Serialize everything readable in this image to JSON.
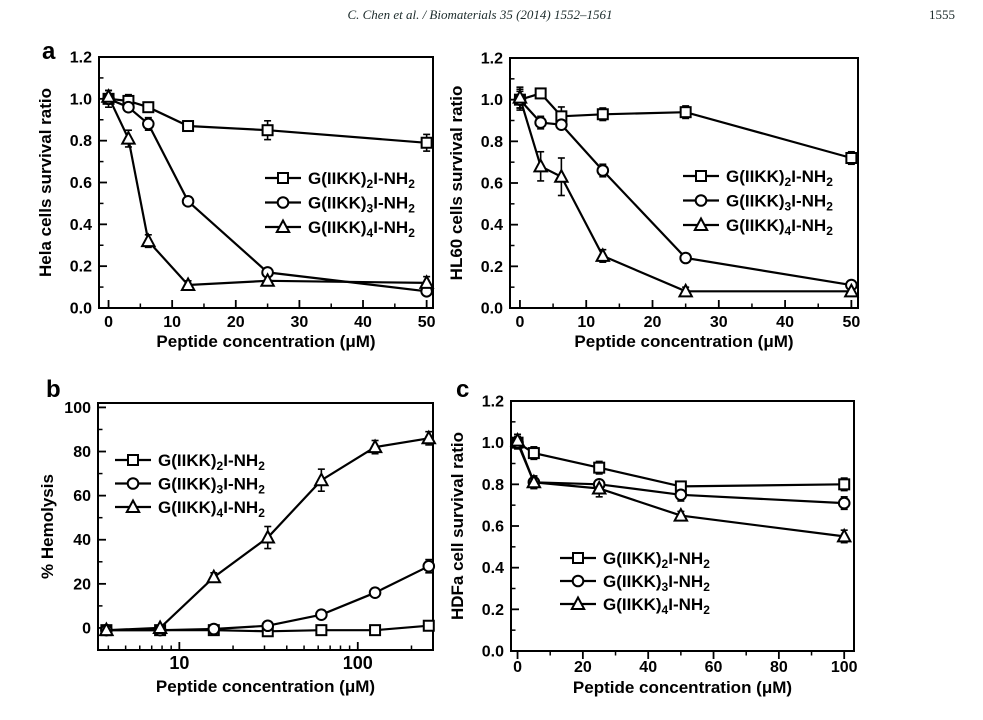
{
  "header": {
    "citation": "C. Chen et al. / Biomaterials 35 (2014) 1552–1561",
    "page_number": "1555"
  },
  "panels": [
    {
      "letter": "a"
    },
    {
      "letter": ""
    },
    {
      "letter": "b"
    },
    {
      "letter": "c"
    }
  ],
  "colors": {
    "ink": "#000000",
    "background": "#ffffff"
  },
  "chart_data": [
    {
      "id": "hela",
      "type": "line",
      "title": "",
      "xlabel": "Peptide concentration (μM)",
      "ylabel": "Hela cells survival ratio",
      "xscale": "linear",
      "xlim": [
        -1.5,
        51
      ],
      "ylim": [
        0,
        1.2
      ],
      "grid": false,
      "xticks": {
        "major": [
          0,
          10,
          20,
          30,
          40,
          50
        ],
        "minor": [
          5,
          15,
          25,
          35,
          45
        ],
        "labels": [
          "0",
          "10",
          "20",
          "30",
          "40",
          "50"
        ]
      },
      "yticks": {
        "major": [
          0,
          0.2,
          0.4,
          0.6,
          0.8,
          1.0,
          1.2
        ],
        "minor": [
          0.1,
          0.3,
          0.5,
          0.7,
          0.9,
          1.1
        ],
        "labels": [
          "0.0",
          "0.2",
          "0.4",
          "0.6",
          "0.8",
          "1.0",
          "1.2"
        ]
      },
      "x": [
        0,
        3.125,
        6.25,
        12.5,
        25,
        50
      ],
      "series": [
        {
          "name": "G(IIKK)₂I-NH₂",
          "marker": "square",
          "y": [
            1.0,
            0.99,
            0.96,
            0.87,
            0.85,
            0.79
          ],
          "err": [
            0.02,
            0.03,
            0.02,
            0.02,
            0.045,
            0.04
          ]
        },
        {
          "name": "G(IIKK)₃I-NH₂",
          "marker": "circle",
          "y": [
            1.0,
            0.96,
            0.88,
            0.51,
            0.17,
            0.08
          ],
          "err": [
            0.04,
            0.02,
            0.03,
            0.02,
            0.02,
            0.02
          ]
        },
        {
          "name": "G(IIKK)₄I-NH₂",
          "marker": "triangle",
          "y": [
            1.01,
            0.81,
            0.32,
            0.11,
            0.13,
            0.12
          ],
          "err": [
            0.03,
            0.04,
            0.03,
            0.02,
            0.02,
            0.03
          ]
        }
      ],
      "legend": {
        "position": "middle-right",
        "pos": [
          230,
          142
        ]
      }
    },
    {
      "id": "hl60",
      "type": "line",
      "title": "",
      "xlabel": "Peptide concentration (μM)",
      "ylabel": "HL60 cells survival ratio",
      "xscale": "linear",
      "xlim": [
        -1.5,
        51
      ],
      "ylim": [
        0,
        1.2
      ],
      "grid": false,
      "xticks": {
        "major": [
          0,
          10,
          20,
          30,
          40,
          50
        ],
        "minor": [
          5,
          15,
          25,
          35,
          45
        ],
        "labels": [
          "0",
          "10",
          "20",
          "30",
          "40",
          "50"
        ]
      },
      "yticks": {
        "major": [
          0,
          0.2,
          0.4,
          0.6,
          0.8,
          1.0,
          1.2
        ],
        "minor": [
          0.1,
          0.3,
          0.5,
          0.7,
          0.9,
          1.1
        ],
        "labels": [
          "0.0",
          "0.2",
          "0.4",
          "0.6",
          "0.8",
          "1.0",
          "1.2"
        ]
      },
      "x": [
        0,
        3.125,
        6.25,
        12.5,
        25,
        50
      ],
      "series": [
        {
          "name": "G(IIKK)₂I-NH₂",
          "marker": "square",
          "y": [
            1.0,
            1.03,
            0.92,
            0.93,
            0.94,
            0.72
          ],
          "err": [
            0.05,
            0.02,
            0.045,
            0.03,
            0.03,
            0.03
          ]
        },
        {
          "name": "G(IIKK)₃I-NH₂",
          "marker": "circle",
          "y": [
            1.0,
            0.89,
            0.88,
            0.66,
            0.24,
            0.11
          ],
          "err": [
            0.04,
            0.03,
            0.02,
            0.03,
            0.02,
            0.02
          ]
        },
        {
          "name": "G(IIKK)₄I-NH₂",
          "marker": "triangle",
          "y": [
            1.01,
            0.68,
            0.63,
            0.25,
            0.08,
            0.08
          ],
          "err": [
            0.05,
            0.07,
            0.09,
            0.03,
            0.02,
            0.02
          ]
        }
      ],
      "legend": {
        "position": "middle-right",
        "pos": [
          235,
          140
        ]
      }
    },
    {
      "id": "hemolysis",
      "type": "line",
      "title": "",
      "xlabel": "Peptide concentration (μM)",
      "ylabel": "% Hemolysis",
      "xscale": "log",
      "xlim": [
        3.5,
        264
      ],
      "ylim": [
        -10,
        102
      ],
      "grid": false,
      "xticks": {
        "major": [
          10,
          100
        ],
        "minor": [
          4,
          5,
          6,
          7,
          8,
          9,
          20,
          30,
          40,
          50,
          60,
          70,
          80,
          90,
          200
        ],
        "labels": [
          "10",
          "100"
        ]
      },
      "yticks": {
        "major": [
          0,
          20,
          40,
          60,
          80,
          100
        ],
        "minor": [
          10,
          30,
          50,
          70,
          90
        ],
        "labels": [
          "0",
          "20",
          "40",
          "60",
          "80",
          "100"
        ]
      },
      "x": [
        3.9,
        7.8,
        15.6,
        31.3,
        62.5,
        125,
        250
      ],
      "series": [
        {
          "name": "G(IIKK)₂I-NH₂",
          "marker": "square",
          "y": [
            -1,
            -1,
            -1,
            -1.5,
            -1,
            -1,
            1
          ],
          "err": [
            1,
            1,
            1,
            1,
            1,
            1,
            1.5
          ]
        },
        {
          "name": "G(IIKK)₃I-NH₂",
          "marker": "circle",
          "y": [
            -1,
            -1,
            -0.5,
            1,
            6,
            16,
            28
          ],
          "err": [
            1,
            1,
            1,
            1.5,
            1.5,
            1.5,
            3
          ]
        },
        {
          "name": "G(IIKK)₄I-NH₂",
          "marker": "triangle",
          "y": [
            -1,
            0,
            23,
            41,
            67,
            82,
            86
          ],
          "err": [
            1,
            1,
            2,
            5,
            5,
            3,
            3
          ]
        }
      ],
      "legend": {
        "position": "upper-left",
        "pos": [
          80,
          88
        ]
      }
    },
    {
      "id": "hdfa",
      "type": "line",
      "title": "",
      "xlabel": "Peptide concentration (μM)",
      "ylabel": "HDFa cell survival ratio",
      "xscale": "linear",
      "xlim": [
        -2,
        103
      ],
      "ylim": [
        0,
        1.2
      ],
      "grid": false,
      "xticks": {
        "major": [
          0,
          20,
          40,
          60,
          80,
          100
        ],
        "minor": [
          10,
          30,
          50,
          70,
          90
        ],
        "labels": [
          "0",
          "20",
          "40",
          "60",
          "80",
          "100"
        ]
      },
      "yticks": {
        "major": [
          0,
          0.2,
          0.4,
          0.6,
          0.8,
          1.0,
          1.2
        ],
        "minor": [
          0.1,
          0.3,
          0.5,
          0.7,
          0.9,
          1.1
        ],
        "labels": [
          "0.0",
          "0.2",
          "0.4",
          "0.6",
          "0.8",
          "1.0",
          "1.2"
        ]
      },
      "x": [
        0,
        5,
        25,
        50,
        100
      ],
      "series": [
        {
          "name": "G(IIKK)₂I-NH₂",
          "marker": "square",
          "y": [
            1.0,
            0.95,
            0.88,
            0.79,
            0.8
          ],
          "err": [
            0.03,
            0.03,
            0.03,
            0.02,
            0.03
          ]
        },
        {
          "name": "G(IIKK)₃I-NH₂",
          "marker": "circle",
          "y": [
            1.0,
            0.81,
            0.8,
            0.75,
            0.71
          ],
          "err": [
            0.02,
            0.03,
            0.02,
            0.03,
            0.03
          ]
        },
        {
          "name": "G(IIKK)₄I-NH₂",
          "marker": "triangle",
          "y": [
            1.01,
            0.81,
            0.78,
            0.65,
            0.55
          ],
          "err": [
            0.03,
            0.03,
            0.04,
            0.02,
            0.03
          ]
        }
      ],
      "legend": {
        "position": "lower-center",
        "pos": [
          112,
          186
        ]
      }
    }
  ]
}
